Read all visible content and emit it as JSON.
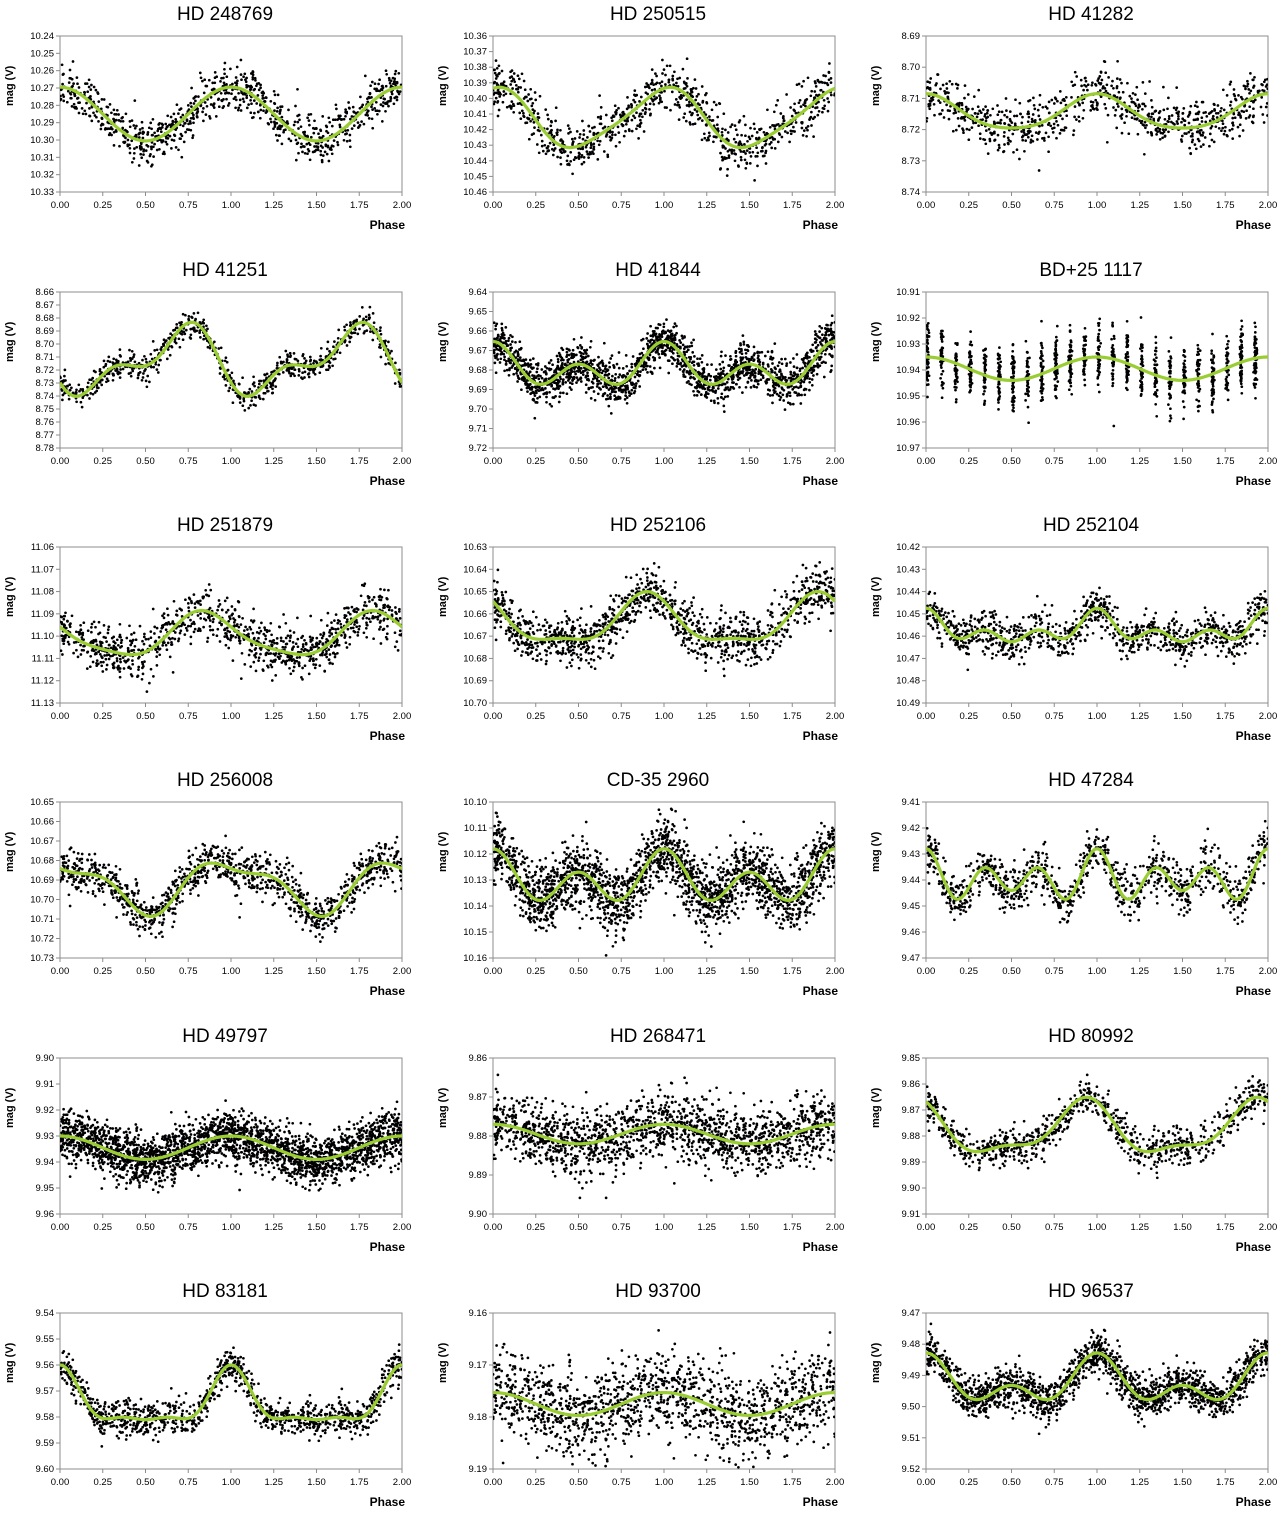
{
  "chart_data": [
    {
      "type": "scatter",
      "title": "HD 248769",
      "ylabel": "mag (V)",
      "xlabel": "Phase",
      "x_ticks": [
        "0.00",
        "0.25",
        "0.50",
        "0.75",
        "1.00",
        "1.25",
        "1.50",
        "1.75",
        "2.00"
      ],
      "y_ticks": [
        "10.24",
        "10.25",
        "10.26",
        "10.27",
        "10.28",
        "10.29",
        "10.30",
        "10.31",
        "10.32",
        "10.33"
      ],
      "xlim": [
        0,
        2
      ],
      "ylim": [
        10.24,
        10.33
      ],
      "y_inverted": true,
      "fit": {
        "mean": 10.285,
        "harmonics": [
          [
            0.0155,
            0
          ]
        ]
      },
      "scatter_sd": 0.0065,
      "points": 900,
      "colors": {
        "points": "#000000",
        "fit": "#9acd32"
      }
    },
    {
      "type": "scatter",
      "title": "HD 250515",
      "ylabel": "mag (V)",
      "xlabel": "Phase",
      "x_ticks": [
        "0.00",
        "0.25",
        "0.50",
        "0.75",
        "1.00",
        "1.25",
        "1.50",
        "1.75",
        "2.00"
      ],
      "y_ticks": [
        "10.36",
        "10.37",
        "10.38",
        "10.39",
        "10.40",
        "10.41",
        "10.42",
        "10.43",
        "10.44",
        "10.45",
        "10.46"
      ],
      "xlim": [
        0,
        2
      ],
      "ylim": [
        10.36,
        10.46
      ],
      "y_inverted": true,
      "fit": {
        "mean": 10.413,
        "harmonics": [
          [
            0.0185,
            0
          ],
          [
            0.003,
            0.6
          ]
        ]
      },
      "scatter_sd": 0.008,
      "points": 900,
      "colors": {
        "points": "#000000",
        "fit": "#9acd32"
      }
    },
    {
      "type": "scatter",
      "title": "HD 41282",
      "ylabel": "mag (V)",
      "xlabel": "Phase",
      "x_ticks": [
        "0.00",
        "0.25",
        "0.50",
        "0.75",
        "1.00",
        "1.25",
        "1.50",
        "1.75",
        "2.00"
      ],
      "y_ticks": [
        "8.69",
        "8.70",
        "8.71",
        "8.72",
        "8.73",
        "8.74"
      ],
      "xlim": [
        0,
        2
      ],
      "ylim": [
        8.69,
        8.74
      ],
      "y_inverted": true,
      "fit": {
        "mean": 8.7148,
        "harmonics": [
          [
            0.0055,
            0
          ],
          [
            0.0008,
            0.5
          ]
        ]
      },
      "scatter_sd": 0.0042,
      "points": 800,
      "colors": {
        "points": "#000000",
        "fit": "#9acd32"
      }
    },
    {
      "type": "scatter",
      "title": "HD 41251",
      "ylabel": "mag (V)",
      "xlabel": "Phase",
      "x_ticks": [
        "0.00",
        "0.25",
        "0.50",
        "0.75",
        "1.00",
        "1.25",
        "1.50",
        "1.75",
        "2.00"
      ],
      "y_ticks": [
        "8.66",
        "8.67",
        "8.68",
        "8.69",
        "8.70",
        "8.71",
        "8.72",
        "8.73",
        "8.74",
        "8.75",
        "8.76",
        "8.77",
        "8.78"
      ],
      "xlim": [
        0,
        2
      ],
      "ylim": [
        8.66,
        8.78
      ],
      "y_inverted": true,
      "fit": {
        "mean": 8.7135,
        "harmonics": [
          [
            0.021,
            0.7
          ],
          [
            0.012,
            0.3
          ]
        ]
      },
      "scatter_sd": 0.005,
      "points": 800,
      "colors": {
        "points": "#000000",
        "fit": "#9acd32"
      }
    },
    {
      "type": "scatter",
      "title": "HD 41844",
      "ylabel": "mag (V)",
      "xlabel": "Phase",
      "x_ticks": [
        "0.00",
        "0.25",
        "0.50",
        "0.75",
        "1.00",
        "1.25",
        "1.50",
        "1.75",
        "2.00"
      ],
      "y_ticks": [
        "9.64",
        "9.65",
        "9.66",
        "9.67",
        "9.68",
        "9.69",
        "9.70",
        "9.71",
        "9.72"
      ],
      "xlim": [
        0,
        2
      ],
      "ylim": [
        9.64,
        9.72
      ],
      "y_inverted": true,
      "fit": {
        "mean": 9.679,
        "harmonics": [
          [
            0.0058,
            0
          ],
          [
            0.0078,
            0
          ]
        ]
      },
      "scatter_sd": 0.0055,
      "points": 1800,
      "colors": {
        "points": "#000000",
        "fit": "#9acd32"
      }
    },
    {
      "type": "scatter",
      "title": "BD+25 1117",
      "ylabel": "mag (V)",
      "xlabel": "Phase",
      "x_ticks": [
        "0.00",
        "0.25",
        "0.50",
        "0.75",
        "1.00",
        "1.25",
        "1.50",
        "1.75",
        "2.00"
      ],
      "y_ticks": [
        "10.91",
        "10.92",
        "10.93",
        "10.94",
        "10.95",
        "10.96",
        "10.97"
      ],
      "xlim": [
        0,
        2
      ],
      "ylim": [
        10.91,
        10.97
      ],
      "y_inverted": true,
      "fit": {
        "mean": 10.9395,
        "harmonics": [
          [
            0.0045,
            0
          ]
        ]
      },
      "scatter_sd": 0.006,
      "points": 1200,
      "clustered": true,
      "colors": {
        "points": "#000000",
        "fit": "#9acd32"
      }
    },
    {
      "type": "scatter",
      "title": "HD 251879",
      "ylabel": "mag (V)",
      "xlabel": "Phase",
      "x_ticks": [
        "0.00",
        "0.25",
        "0.50",
        "0.75",
        "1.00",
        "1.25",
        "1.50",
        "1.75",
        "2.00"
      ],
      "y_ticks": [
        "11.06",
        "11.07",
        "11.08",
        "11.09",
        "11.10",
        "11.11",
        "11.12",
        "11.13"
      ],
      "xlim": [
        0,
        2
      ],
      "ylim": [
        11.06,
        11.13
      ],
      "y_inverted": true,
      "fit": {
        "mean": 11.0998,
        "harmonics": [
          [
            0.0095,
            0.85
          ],
          [
            0.002,
            0.3
          ]
        ]
      },
      "scatter_sd": 0.0055,
      "points": 1000,
      "colors": {
        "points": "#000000",
        "fit": "#9acd32"
      }
    },
    {
      "type": "scatter",
      "title": "HD 252106",
      "ylabel": "mag (V)",
      "xlabel": "Phase",
      "x_ticks": [
        "0.00",
        "0.25",
        "0.50",
        "0.75",
        "1.00",
        "1.25",
        "1.50",
        "1.75",
        "2.00"
      ],
      "y_ticks": [
        "10.63",
        "10.64",
        "10.65",
        "10.66",
        "10.67",
        "10.68",
        "10.69",
        "10.70"
      ],
      "xlim": [
        0,
        2
      ],
      "ylim": [
        10.63,
        10.7
      ],
      "y_inverted": true,
      "fit": {
        "mean": 10.664,
        "harmonics": [
          [
            0.0105,
            0.9
          ],
          [
            0.0035,
            0.4
          ]
        ]
      },
      "scatter_sd": 0.0055,
      "points": 1200,
      "colors": {
        "points": "#000000",
        "fit": "#9acd32"
      }
    },
    {
      "type": "scatter",
      "title": "HD 252104",
      "ylabel": "mag (V)",
      "xlabel": "Phase",
      "x_ticks": [
        "0.00",
        "0.25",
        "0.50",
        "0.75",
        "1.00",
        "1.25",
        "1.50",
        "1.75",
        "2.00"
      ],
      "y_ticks": [
        "10.42",
        "10.43",
        "10.44",
        "10.45",
        "10.46",
        "10.47",
        "10.48",
        "10.49"
      ],
      "xlim": [
        0,
        2
      ],
      "ylim": [
        10.42,
        10.49
      ],
      "y_inverted": true,
      "fit": {
        "mean": 10.4575,
        "harmonics": [
          [
            0.004,
            0
          ],
          [
            0.0025,
            0.5
          ],
          [
            0.0035,
            0
          ]
        ]
      },
      "scatter_sd": 0.0045,
      "points": 1000,
      "colors": {
        "points": "#000000",
        "fit": "#9acd32"
      }
    },
    {
      "type": "scatter",
      "title": "HD 256008",
      "ylabel": "mag (V)",
      "xlabel": "Phase",
      "x_ticks": [
        "0.00",
        "0.25",
        "0.50",
        "0.75",
        "1.00",
        "1.25",
        "1.50",
        "1.75",
        "2.00"
      ],
      "y_ticks": [
        "10.65",
        "10.66",
        "10.67",
        "10.68",
        "10.69",
        "10.70",
        "10.71",
        "10.72",
        "10.73"
      ],
      "xlim": [
        0,
        2
      ],
      "ylim": [
        10.65,
        10.73
      ],
      "y_inverted": true,
      "fit": {
        "mean": 10.6925,
        "harmonics": [
          [
            0.012,
            0
          ],
          [
            0.0045,
            0.3
          ]
        ]
      },
      "scatter_sd": 0.0055,
      "points": 1100,
      "colors": {
        "points": "#000000",
        "fit": "#9acd32"
      }
    },
    {
      "type": "scatter",
      "title": "CD-35 2960",
      "ylabel": "mag (V)",
      "xlabel": "Phase",
      "x_ticks": [
        "0.00",
        "0.25",
        "0.50",
        "0.75",
        "1.00",
        "1.25",
        "1.50",
        "1.75",
        "2.00"
      ],
      "y_ticks": [
        "10.10",
        "10.11",
        "10.12",
        "10.13",
        "10.14",
        "10.15",
        "10.16"
      ],
      "xlim": [
        0,
        2
      ],
      "ylim": [
        10.1,
        10.16
      ],
      "y_inverted": true,
      "fit": {
        "mean": 10.13,
        "harmonics": [
          [
            0.0045,
            0
          ],
          [
            0.0075,
            0
          ]
        ]
      },
      "scatter_sd": 0.0065,
      "points": 2200,
      "colors": {
        "points": "#000000",
        "fit": "#9acd32"
      }
    },
    {
      "type": "scatter",
      "title": "HD 47284",
      "ylabel": "mag (V)",
      "xlabel": "Phase",
      "x_ticks": [
        "0.00",
        "0.25",
        "0.50",
        "0.75",
        "1.00",
        "1.25",
        "1.50",
        "1.75",
        "2.00"
      ],
      "y_ticks": [
        "9.41",
        "9.42",
        "9.43",
        "9.44",
        "9.45",
        "9.46",
        "9.47"
      ],
      "xlim": [
        0,
        2
      ],
      "ylim": [
        9.41,
        9.47
      ],
      "y_inverted": true,
      "fit": {
        "mean": 9.4395,
        "harmonics": [
          [
            0.0015,
            0
          ],
          [
            0.0035,
            0.5
          ],
          [
            0.0065,
            0
          ]
        ]
      },
      "scatter_sd": 0.0045,
      "points": 1000,
      "colors": {
        "points": "#000000",
        "fit": "#9acd32"
      }
    },
    {
      "type": "scatter",
      "title": "HD 49797",
      "ylabel": "mag (V)",
      "xlabel": "Phase",
      "x_ticks": [
        "0.00",
        "0.25",
        "0.50",
        "0.75",
        "1.00",
        "1.25",
        "1.50",
        "1.75",
        "2.00"
      ],
      "y_ticks": [
        "9.90",
        "9.91",
        "9.92",
        "9.93",
        "9.94",
        "9.95",
        "9.96"
      ],
      "xlim": [
        0,
        2
      ],
      "ylim": [
        9.9,
        9.96
      ],
      "y_inverted": true,
      "fit": {
        "mean": 9.9345,
        "harmonics": [
          [
            0.0045,
            0
          ]
        ]
      },
      "scatter_sd": 0.0048,
      "points": 2600,
      "colors": {
        "points": "#000000",
        "fit": "#9acd32"
      }
    },
    {
      "type": "scatter",
      "title": "HD 268471",
      "ylabel": "mag (V)",
      "xlabel": "Phase",
      "x_ticks": [
        "0.00",
        "0.25",
        "0.50",
        "0.75",
        "1.00",
        "1.25",
        "1.50",
        "1.75",
        "2.00"
      ],
      "y_ticks": [
        "9.86",
        "9.87",
        "9.88",
        "9.89",
        "9.90"
      ],
      "xlim": [
        0,
        2
      ],
      "ylim": [
        9.86,
        9.9
      ],
      "y_inverted": true,
      "fit": {
        "mean": 9.8795,
        "harmonics": [
          [
            0.0025,
            0
          ]
        ]
      },
      "scatter_sd": 0.0042,
      "points": 1600,
      "colors": {
        "points": "#000000",
        "fit": "#9acd32"
      }
    },
    {
      "type": "scatter",
      "title": "HD 80992",
      "ylabel": "mag (V)",
      "xlabel": "Phase",
      "x_ticks": [
        "0.00",
        "0.25",
        "0.50",
        "0.75",
        "1.00",
        "1.25",
        "1.50",
        "1.75",
        "2.00"
      ],
      "y_ticks": [
        "9.85",
        "9.86",
        "9.87",
        "9.88",
        "9.89",
        "9.90",
        "9.91"
      ],
      "xlim": [
        0,
        2
      ],
      "ylim": [
        9.85,
        9.91
      ],
      "y_inverted": true,
      "fit": {
        "mean": 9.878,
        "harmonics": [
          [
            0.0095,
            0.92
          ],
          [
            0.0035,
            0.45
          ]
        ]
      },
      "scatter_sd": 0.0035,
      "points": 900,
      "colors": {
        "points": "#000000",
        "fit": "#9acd32"
      }
    },
    {
      "type": "scatter",
      "title": "HD 83181",
      "ylabel": "mag (V)",
      "xlabel": "Phase",
      "x_ticks": [
        "0.00",
        "0.25",
        "0.50",
        "0.75",
        "1.00",
        "1.25",
        "1.50",
        "1.75",
        "2.00"
      ],
      "y_ticks": [
        "9.54",
        "9.55",
        "9.56",
        "9.57",
        "9.58",
        "9.59",
        "9.60"
      ],
      "xlim": [
        0,
        2
      ],
      "ylim": [
        9.54,
        9.6
      ],
      "y_inverted": true,
      "fit": {
        "mean": 9.5755,
        "harmonics": [
          [
            0.0085,
            0
          ],
          [
            0.005,
            0
          ],
          [
            0.002,
            0
          ]
        ]
      },
      "scatter_sd": 0.0033,
      "points": 1100,
      "colors": {
        "points": "#000000",
        "fit": "#9acd32"
      }
    },
    {
      "type": "scatter",
      "title": "HD 93700",
      "ylabel": "mag (V)",
      "xlabel": "Phase",
      "x_ticks": [
        "0.00",
        "0.25",
        "0.50",
        "0.75",
        "1.00",
        "1.25",
        "1.50",
        "1.75",
        "2.00"
      ],
      "y_ticks": [
        "9.16",
        "9.17",
        "9.18",
        "9.19"
      ],
      "xlim": [
        0,
        2
      ],
      "ylim": [
        9.16,
        9.19
      ],
      "y_inverted": true,
      "fit": {
        "mean": 9.1775,
        "harmonics": [
          [
            0.0022,
            0
          ]
        ]
      },
      "scatter_sd": 0.0042,
      "points": 1400,
      "colors": {
        "points": "#000000",
        "fit": "#9acd32"
      }
    },
    {
      "type": "scatter",
      "title": "HD 96537",
      "ylabel": "mag (V)",
      "xlabel": "Phase",
      "x_ticks": [
        "0.00",
        "0.25",
        "0.50",
        "0.75",
        "1.00",
        "1.25",
        "1.50",
        "1.75",
        "2.00"
      ],
      "y_ticks": [
        "9.47",
        "9.48",
        "9.49",
        "9.50",
        "9.51",
        "9.52"
      ],
      "xlim": [
        0,
        2
      ],
      "ylim": [
        9.47,
        9.52
      ],
      "y_inverted": true,
      "fit": {
        "mean": 9.4925,
        "harmonics": [
          [
            0.0052,
            0
          ],
          [
            0.0045,
            0
          ]
        ]
      },
      "scatter_sd": 0.0032,
      "points": 1800,
      "colors": {
        "points": "#000000",
        "fit": "#9acd32"
      }
    }
  ]
}
